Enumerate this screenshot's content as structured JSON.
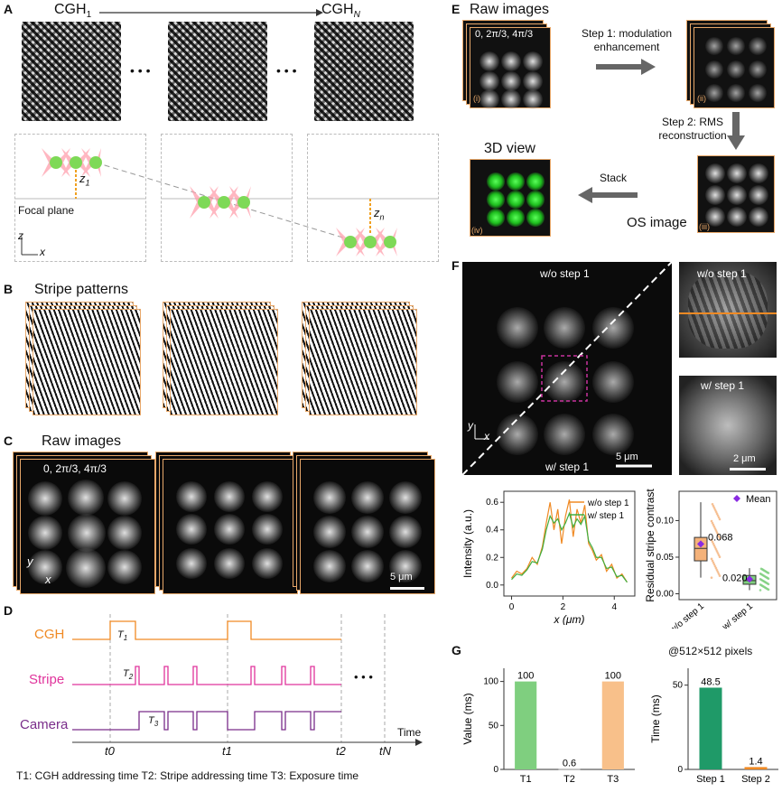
{
  "panels": {
    "A": {
      "letter": "A",
      "cgh_first": "CGH",
      "cgh_first_sub": "1",
      "cgh_last": "CGH",
      "cgh_last_sub": "N",
      "dots": "• • •",
      "z1": "z",
      "z1_sub": "1",
      "zn": "z",
      "zn_sub": "n",
      "focal_plane": "Focal plane",
      "axis_z": "z",
      "axis_x": "x"
    },
    "B": {
      "letter": "B",
      "title": "Stripe patterns"
    },
    "C": {
      "letter": "C",
      "title": "Raw images",
      "phases": "0, 2π/3, 4π/3",
      "scalebar": "5 μm",
      "axis_y": "y",
      "axis_x": "x"
    },
    "D": {
      "letter": "D",
      "rows": [
        "CGH",
        "Stripe",
        "Camera"
      ],
      "t1_label": "T",
      "t1_sub": "1",
      "t2_label": "T",
      "t2_sub": "2",
      "t3_label": "T",
      "t3_sub": "3",
      "time_label": "Time",
      "ticks": [
        "t0",
        "t1",
        "t2",
        "tN"
      ],
      "dots": "• • •",
      "caption": "T1: CGH addressing time  T2: Stripe addressing time  T3: Exposure time"
    },
    "E": {
      "letter": "E",
      "raw_title": "Raw images",
      "phases": "0, 2π/3, 4π/3",
      "step1": "Step 1: modulation enhancement",
      "step2": "Step 2: RMS reconstruction",
      "stack": "Stack",
      "os_image": "OS image",
      "view3d": "3D view",
      "roman": [
        "(i)",
        "(ii)",
        "(iii)",
        "(iv)"
      ]
    },
    "F": {
      "letter": "F",
      "wo_step1": "w/o step 1",
      "w_step1": "w/ step 1",
      "scalebar_big": "5 μm",
      "scalebar_small": "2 μm",
      "axis_y": "y",
      "axis_x": "x",
      "mean_label": "Mean",
      "mean_wo": "0.068",
      "mean_w": "0.020"
    },
    "G": {
      "letter": "G",
      "pixels_note": "@512×512 pixels"
    }
  },
  "chart_data": [
    {
      "type": "line",
      "xlabel": "x (μm)",
      "ylabel": "Intensity (a.u.)",
      "xlim": [
        -0.3,
        4.8
      ],
      "ylim": [
        -0.08,
        0.68
      ],
      "xticks": [
        0,
        2,
        4
      ],
      "yticks": [
        0.0,
        0.2,
        0.4,
        0.6
      ],
      "legend": "top-right",
      "series": [
        {
          "name": "w/o step 1",
          "color": "#f08a24",
          "x": [
            0,
            0.2,
            0.4,
            0.6,
            0.8,
            1.0,
            1.2,
            1.35,
            1.5,
            1.65,
            1.8,
            1.95,
            2.1,
            2.25,
            2.4,
            2.55,
            2.7,
            2.85,
            3.0,
            3.15,
            3.3,
            3.5,
            3.7,
            3.9,
            4.1,
            4.3,
            4.5
          ],
          "y": [
            0.05,
            0.1,
            0.08,
            0.12,
            0.2,
            0.15,
            0.28,
            0.45,
            0.6,
            0.4,
            0.55,
            0.3,
            0.5,
            0.62,
            0.35,
            0.55,
            0.45,
            0.58,
            0.3,
            0.25,
            0.18,
            0.22,
            0.1,
            0.15,
            0.05,
            0.08,
            0.02
          ]
        },
        {
          "name": "w/ step 1",
          "color": "#3fae3f",
          "x": [
            0,
            0.2,
            0.4,
            0.6,
            0.8,
            1.0,
            1.2,
            1.35,
            1.5,
            1.65,
            1.8,
            1.95,
            2.1,
            2.25,
            2.4,
            2.55,
            2.7,
            2.85,
            3.0,
            3.15,
            3.3,
            3.5,
            3.7,
            3.9,
            4.1,
            4.3,
            4.5
          ],
          "y": [
            0.04,
            0.08,
            0.07,
            0.11,
            0.17,
            0.16,
            0.26,
            0.4,
            0.5,
            0.45,
            0.48,
            0.4,
            0.45,
            0.52,
            0.42,
            0.48,
            0.44,
            0.5,
            0.32,
            0.27,
            0.2,
            0.2,
            0.12,
            0.13,
            0.06,
            0.07,
            0.02
          ]
        }
      ]
    },
    {
      "type": "scatter",
      "ylabel": "Residual stripe contrast",
      "categories": [
        "w/o step 1",
        "w/ step 1"
      ],
      "ylim": [
        -0.008,
        0.14
      ],
      "yticks": [
        0.0,
        0.05,
        0.1
      ],
      "legend": "top-right",
      "series": [
        {
          "name": "w/o step 1",
          "color": "#f4b27a",
          "mean": 0.068,
          "box": {
            "q1": 0.045,
            "median": 0.062,
            "q3": 0.077,
            "whisker_low": 0.022,
            "whisker_high": 0.125
          }
        },
        {
          "name": "w/ step 1",
          "color": "#7fcf7f",
          "mean": 0.02,
          "box": {
            "q1": 0.013,
            "median": 0.018,
            "q3": 0.025,
            "whisker_low": 0.005,
            "whisker_high": 0.035
          }
        }
      ]
    },
    {
      "type": "bar",
      "ylabel": "Value (ms)",
      "categories": [
        "T1",
        "T2",
        "T3"
      ],
      "values": [
        100,
        0.6,
        100
      ],
      "colors": [
        "#7fcf7f",
        "#999999",
        "#f8c08a"
      ],
      "ylim": [
        0,
        115
      ],
      "yticks": [
        0,
        50,
        100
      ]
    },
    {
      "type": "bar",
      "ylabel": "Time (ms)",
      "categories": [
        "Step 1",
        "Step 2"
      ],
      "values": [
        48.5,
        1.4
      ],
      "colors": [
        "#1f9a68",
        "#f08a24"
      ],
      "ylim": [
        0,
        60
      ],
      "yticks": [
        0,
        50
      ]
    }
  ]
}
